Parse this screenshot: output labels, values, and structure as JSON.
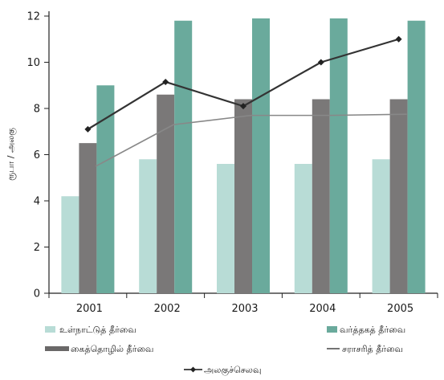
{
  "chart_data": {
    "type": "bar",
    "title": "",
    "xlabel": "",
    "ylabel": "ரூபா / அலகு",
    "categories": [
      "2001",
      "2002",
      "2003",
      "2004",
      "2005"
    ],
    "ylim": [
      0,
      12
    ],
    "yticks": [
      0,
      2,
      4,
      6,
      8,
      10,
      12
    ],
    "grid": false,
    "legend_position": "bottom",
    "series": [
      {
        "name": "உள்நாட்டுத் தீர்வை",
        "type": "bar",
        "color": "#b8dcd6",
        "values": [
          4.2,
          5.8,
          5.6,
          5.6,
          5.8
        ]
      },
      {
        "name": "கைத்தொழில் தீர்வை",
        "type": "bar",
        "color": "#7a7878",
        "values": [
          6.5,
          8.6,
          8.4,
          8.4,
          8.4
        ]
      },
      {
        "name": "வர்த்தகத் தீர்வை",
        "type": "bar",
        "color": "#6aaa9c",
        "values": [
          9.0,
          11.8,
          11.9,
          11.9,
          11.8
        ]
      },
      {
        "name": "சராசரித் தீர்வை",
        "type": "line",
        "color": "#888888",
        "values": [
          5.5,
          7.3,
          7.7,
          7.7,
          7.75
        ]
      },
      {
        "name": "அலகுச்செலவு",
        "type": "line-marker",
        "color": "#333333",
        "values": [
          7.1,
          9.15,
          8.1,
          10.0,
          11.0
        ]
      }
    ]
  }
}
